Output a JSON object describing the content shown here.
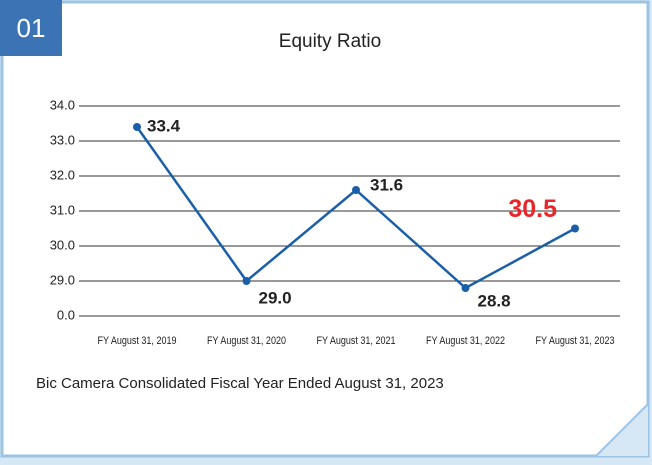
{
  "chart_data": {
    "type": "line",
    "badge": "01",
    "title": "Equity Ratio",
    "categories": [
      "FY August 31, 2019",
      "FY August 31, 2020",
      "FY August 31, 2021",
      "FY August 31, 2022",
      "FY August 31, 2023"
    ],
    "series": [
      {
        "name": "Equity Ratio",
        "color": "#1b5fa8",
        "values": [
          33.4,
          29.0,
          31.6,
          28.8,
          30.5
        ],
        "value_labels": [
          "33.4",
          "29.0",
          "31.6",
          "28.8",
          "30.5"
        ],
        "value_label_colors": [
          "#222222",
          "#222222",
          "#222222",
          "#222222",
          "#e8262b"
        ]
      }
    ],
    "ylim": [
      0,
      34
    ],
    "yticks": [
      {
        "value": 34,
        "label": "34.0"
      },
      {
        "value": 33,
        "label": "33.0"
      },
      {
        "value": 32,
        "label": "32.0"
      },
      {
        "value": 31,
        "label": "31.0"
      },
      {
        "value": 30,
        "label": "30.0"
      },
      {
        "value": 29,
        "label": "29.0"
      },
      {
        "value": 0,
        "label": "0.0"
      }
    ],
    "grid": true,
    "note": "Bic Camera Consolidated Fiscal Year Ended August 31, 2023"
  }
}
